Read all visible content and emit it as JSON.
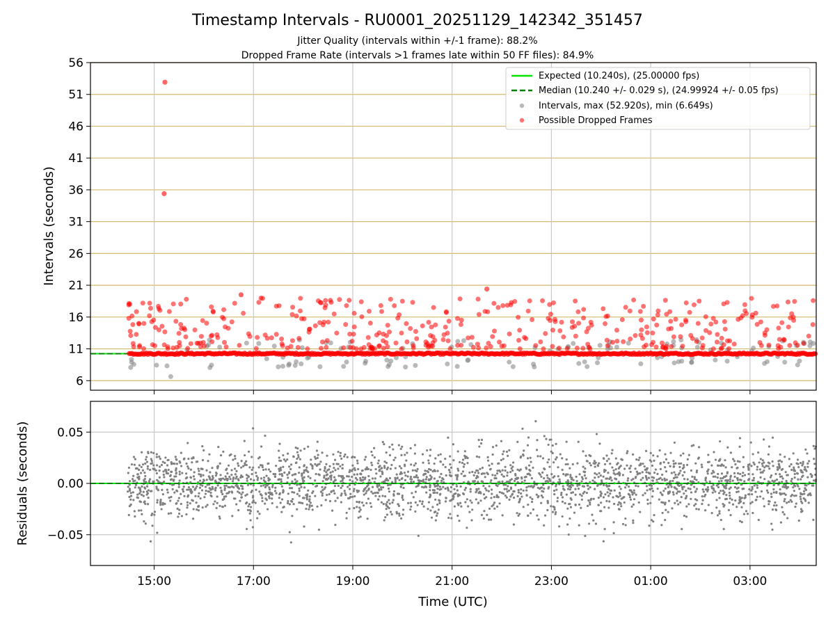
{
  "figure": {
    "title": "Timestamp Intervals - RU0001_20251129_142342_351457",
    "subtitle1": "Jitter Quality (intervals within +/-1 frame): 88.2%",
    "subtitle2": "Dropped Frame Rate (intervals >1 frames late within 50 FF files): 84.9%",
    "xlabel": "Time (UTC)"
  },
  "chart_data": [
    {
      "type": "scatter",
      "title": "Timestamp Intervals - RU0001_20251129_142342_351457",
      "ylabel": "Intervals (seconds)",
      "xlabel": "Time (UTC)",
      "x_range_utc": [
        "13:43",
        "04:20"
      ],
      "xticks": [
        "15:00",
        "17:00",
        "19:00",
        "21:00",
        "23:00",
        "01:00",
        "03:00"
      ],
      "ylim": [
        4.5,
        56
      ],
      "yticks": [
        6,
        11,
        16,
        21,
        26,
        31,
        36,
        41,
        46,
        51,
        56
      ],
      "grid": "horizontal lines at y ticks (goldenrod), vertical lines at x ticks (grey)",
      "legend_position": "top-right",
      "series": [
        {
          "name": "Expected (10.240s), (25.00000 fps)",
          "kind": "line",
          "style": "solid",
          "color": "#00e600",
          "y": 10.24
        },
        {
          "name": "Median (10.240 +/- 0.029 s), (24.99924 +/- 0.05 fps)",
          "kind": "line",
          "style": "dashed",
          "color": "#008000",
          "y": 10.24
        },
        {
          "name": "Intervals, max (52.920s), min (6.649s)",
          "kind": "scatter",
          "color": "#808080",
          "max": 52.92,
          "min": 6.649,
          "typical": 10.24
        },
        {
          "name": "Possible Dropped Frames",
          "kind": "scatter",
          "color": "#ff0000",
          "outliers": [
            {
              "x": "15:13",
              "y": 52.92
            },
            {
              "x": "15:12",
              "y": 35.4
            },
            {
              "x": "21:42",
              "y": 20.4
            },
            {
              "x": "16:45",
              "y": 19.5
            }
          ],
          "baseline": 10.24,
          "typical_range": [
            11,
            19
          ]
        }
      ]
    },
    {
      "type": "scatter",
      "ylabel": "Residuals (seconds)",
      "xlabel": "Time (UTC)",
      "ylim": [
        -0.08,
        0.08
      ],
      "yticks": [
        -0.05,
        0.0,
        0.05
      ],
      "ytick_labels": [
        "−0.05",
        "0.00",
        "0.05"
      ],
      "xticks": [
        "15:00",
        "17:00",
        "19:00",
        "21:00",
        "23:00",
        "01:00",
        "03:00"
      ],
      "grid": "on (grey)",
      "series": [
        {
          "name": "Residuals",
          "kind": "scatter",
          "color": "#808080",
          "center": 0.0,
          "approx_spread_sd": 0.02
        },
        {
          "name": "Zero line",
          "kind": "line",
          "style": "dashed",
          "color": "#008000",
          "y": 0.0
        }
      ]
    }
  ],
  "colors": {
    "expected": "#00e600",
    "median": "#008000",
    "intervals": "#808080",
    "dropped": "#ff0000",
    "hgrid_top": "#d4b86a",
    "vgrid": "#c8c8c8"
  }
}
